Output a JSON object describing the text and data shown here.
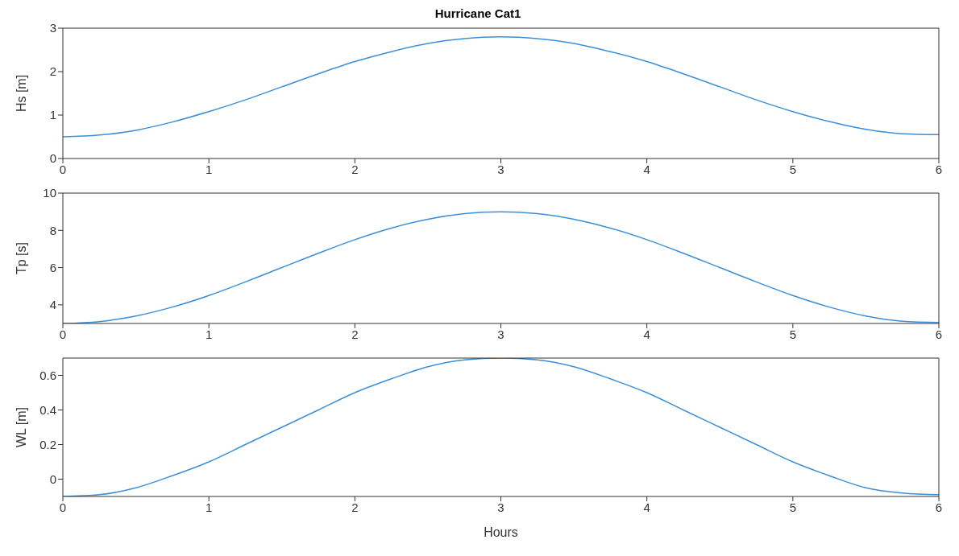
{
  "chart_data": [
    {
      "type": "line",
      "title": "Hurricane Cat1",
      "ylabel": "Hs [m]",
      "x": [
        0,
        0.25,
        0.5,
        0.75,
        1,
        1.25,
        1.5,
        1.75,
        2,
        2.25,
        2.5,
        2.75,
        3,
        3.25,
        3.5,
        3.75,
        4,
        4.25,
        4.5,
        4.75,
        5,
        5.25,
        5.5,
        5.75,
        6
      ],
      "xlim": [
        0,
        6
      ],
      "xticks": [
        0,
        1,
        2,
        3,
        4,
        5,
        6
      ],
      "ylim": [
        0,
        3
      ],
      "yticks": [
        0,
        1,
        2,
        3
      ],
      "series": [
        {
          "color": "#3b8fd8",
          "values": [
            0.5,
            0.54,
            0.65,
            0.84,
            1.08,
            1.35,
            1.65,
            1.95,
            2.23,
            2.46,
            2.65,
            2.76,
            2.8,
            2.76,
            2.65,
            2.46,
            2.23,
            1.95,
            1.65,
            1.35,
            1.08,
            0.85,
            0.67,
            0.57,
            0.55
          ]
        }
      ]
    },
    {
      "type": "line",
      "ylabel": "Tp [s]",
      "x": [
        0,
        0.25,
        0.5,
        0.75,
        1,
        1.25,
        1.5,
        1.75,
        2,
        2.25,
        2.5,
        2.75,
        3,
        3.25,
        3.5,
        3.75,
        4,
        4.25,
        4.5,
        4.75,
        5,
        5.25,
        5.5,
        5.75,
        6
      ],
      "xlim": [
        0,
        6
      ],
      "xticks": [
        0,
        1,
        2,
        3,
        4,
        5,
        6
      ],
      "ylim": [
        3,
        10
      ],
      "yticks": [
        4,
        6,
        8,
        10
      ],
      "series": [
        {
          "color": "#3b8fd8",
          "values": [
            3,
            3.1,
            3.4,
            3.88,
            4.5,
            5.23,
            6,
            6.77,
            7.5,
            8.12,
            8.6,
            8.9,
            9,
            8.9,
            8.6,
            8.12,
            7.5,
            6.77,
            6,
            5.23,
            4.5,
            3.88,
            3.4,
            3.12,
            3.05
          ]
        }
      ]
    },
    {
      "type": "line",
      "ylabel": "WL [m]",
      "xlabel": "Hours",
      "x": [
        0,
        0.25,
        0.5,
        0.75,
        1,
        1.25,
        1.5,
        1.75,
        2,
        2.25,
        2.5,
        2.75,
        3,
        3.25,
        3.5,
        3.75,
        4,
        4.25,
        4.5,
        4.75,
        5,
        5.25,
        5.5,
        5.75,
        6
      ],
      "xlim": [
        0,
        6
      ],
      "xticks": [
        0,
        1,
        2,
        3,
        4,
        5,
        6
      ],
      "ylim": [
        -0.1,
        0.7
      ],
      "yticks": [
        0,
        0.2,
        0.4,
        0.6
      ],
      "series": [
        {
          "color": "#3b8fd8",
          "values": [
            -0.1,
            -0.09,
            -0.05,
            0.02,
            0.1,
            0.2,
            0.3,
            0.4,
            0.5,
            0.58,
            0.65,
            0.69,
            0.7,
            0.69,
            0.65,
            0.58,
            0.5,
            0.4,
            0.3,
            0.2,
            0.1,
            0.02,
            -0.05,
            -0.08,
            -0.09
          ]
        }
      ]
    }
  ]
}
